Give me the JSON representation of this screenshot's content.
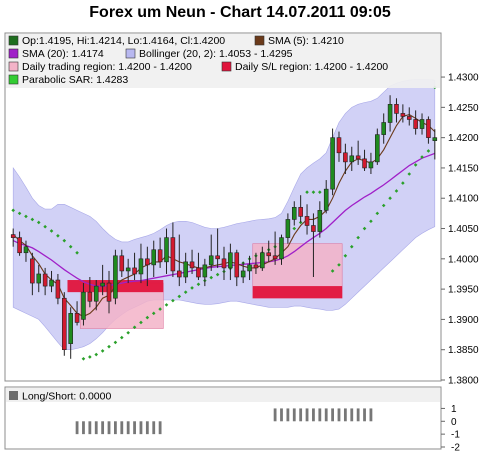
{
  "title": "Forex um Neun - Chart 14.07.2011 09:05",
  "colors": {
    "candle_up": "#1f8a1f",
    "candle_down": "#d21a2f",
    "sma5": "#6b3a1a",
    "sma20": "#a020c8",
    "bollinger_fill": "#c9c9f4",
    "trading_region_fill": "#f3b3c8",
    "sl_region_fill": "#e0143c",
    "psar": "#2aa02a",
    "longshort_bar": "#777777",
    "legend_bg": "#f0f0f0"
  },
  "legend": [
    {
      "id": "ohlc",
      "color": "#1f6e1f",
      "text": "Op:1.4195, Hi:1.4214, Lo:1.4164, Cl:1.4200"
    },
    {
      "id": "sma5",
      "color": "#6b3a1a",
      "text": "SMA (5): 1.4210"
    },
    {
      "id": "sma20",
      "color": "#a020c8",
      "text": "SMA (20): 1.4174"
    },
    {
      "id": "bollinger",
      "color": "#b8b8f0",
      "text": "Bollinger (20, 2): 1.4053 - 1.4295"
    },
    {
      "id": "trading",
      "color": "#f3b3c8",
      "text": "Daily trading region: 1.4200 - 1.4200"
    },
    {
      "id": "sl",
      "color": "#e0143c",
      "text": "Daily S/L region: 1.4200 - 1.4200"
    },
    {
      "id": "psar",
      "color": "#33cc33",
      "text": "Parabolic SAR: 1.4283"
    }
  ],
  "longshort_legend": "Long/Short: 0.0000",
  "chart_data": [
    {
      "type": "candlestick",
      "ylim": [
        1.38,
        1.431
      ],
      "y_ticks": [
        "1.4300",
        "1.4250",
        "1.4200",
        "1.4150",
        "1.4100",
        "1.4050",
        "1.4000",
        "1.3950",
        "1.3900",
        "1.3850",
        "1.3800"
      ],
      "candles": [
        {
          "o": 1.404,
          "h": 1.405,
          "l": 1.402,
          "c": 1.4035
        },
        {
          "o": 1.4035,
          "h": 1.4045,
          "l": 1.4005,
          "c": 1.401
        },
        {
          "o": 1.401,
          "h": 1.403,
          "l": 1.3995,
          "c": 1.402
        },
        {
          "o": 1.4,
          "h": 1.401,
          "l": 1.394,
          "c": 1.396
        },
        {
          "o": 1.396,
          "h": 1.399,
          "l": 1.3945,
          "c": 1.3975
        },
        {
          "o": 1.3975,
          "h": 1.3985,
          "l": 1.394,
          "c": 1.3955
        },
        {
          "o": 1.3955,
          "h": 1.398,
          "l": 1.3945,
          "c": 1.3965
        },
        {
          "o": 1.3965,
          "h": 1.3975,
          "l": 1.3925,
          "c": 1.3935
        },
        {
          "o": 1.3935,
          "h": 1.3945,
          "l": 1.384,
          "c": 1.385
        },
        {
          "o": 1.386,
          "h": 1.392,
          "l": 1.3835,
          "c": 1.391
        },
        {
          "o": 1.391,
          "h": 1.393,
          "l": 1.389,
          "c": 1.3895
        },
        {
          "o": 1.39,
          "h": 1.396,
          "l": 1.389,
          "c": 1.3945
        },
        {
          "o": 1.3945,
          "h": 1.397,
          "l": 1.392,
          "c": 1.393
        },
        {
          "o": 1.393,
          "h": 1.3965,
          "l": 1.3915,
          "c": 1.3955
        },
        {
          "o": 1.3955,
          "h": 1.399,
          "l": 1.394,
          "c": 1.396
        },
        {
          "o": 1.396,
          "h": 1.398,
          "l": 1.391,
          "c": 1.393
        },
        {
          "o": 1.3935,
          "h": 1.4015,
          "l": 1.3925,
          "c": 1.4005
        },
        {
          "o": 1.4005,
          "h": 1.4015,
          "l": 1.397,
          "c": 1.398
        },
        {
          "o": 1.398,
          "h": 1.4,
          "l": 1.396,
          "c": 1.3985
        },
        {
          "o": 1.3985,
          "h": 1.401,
          "l": 1.3965,
          "c": 1.3975
        },
        {
          "o": 1.3975,
          "h": 1.4025,
          "l": 1.396,
          "c": 1.4
        },
        {
          "o": 1.4,
          "h": 1.402,
          "l": 1.3955,
          "c": 1.399
        },
        {
          "o": 1.399,
          "h": 1.403,
          "l": 1.397,
          "c": 1.4015
        },
        {
          "o": 1.4015,
          "h": 1.4035,
          "l": 1.3985,
          "c": 1.3995
        },
        {
          "o": 1.3995,
          "h": 1.405,
          "l": 1.3975,
          "c": 1.4035
        },
        {
          "o": 1.4035,
          "h": 1.406,
          "l": 1.397,
          "c": 1.398
        },
        {
          "o": 1.398,
          "h": 1.404,
          "l": 1.3955,
          "c": 1.397
        },
        {
          "o": 1.397,
          "h": 1.401,
          "l": 1.396,
          "c": 1.3995
        },
        {
          "o": 1.3995,
          "h": 1.4015,
          "l": 1.3975,
          "c": 1.3985
        },
        {
          "o": 1.3985,
          "h": 1.401,
          "l": 1.3965,
          "c": 1.397
        },
        {
          "o": 1.397,
          "h": 1.4,
          "l": 1.3955,
          "c": 1.399
        },
        {
          "o": 1.399,
          "h": 1.404,
          "l": 1.398,
          "c": 1.4005
        },
        {
          "o": 1.4005,
          "h": 1.405,
          "l": 1.3985,
          "c": 1.4
        },
        {
          "o": 1.4,
          "h": 1.402,
          "l": 1.3965,
          "c": 1.3985
        },
        {
          "o": 1.3985,
          "h": 1.4025,
          "l": 1.3965,
          "c": 1.401
        },
        {
          "o": 1.401,
          "h": 1.4015,
          "l": 1.3955,
          "c": 1.397
        },
        {
          "o": 1.397,
          "h": 1.3995,
          "l": 1.396,
          "c": 1.398
        },
        {
          "o": 1.398,
          "h": 1.4005,
          "l": 1.3965,
          "c": 1.399
        },
        {
          "o": 1.399,
          "h": 1.401,
          "l": 1.3975,
          "c": 1.3985
        },
        {
          "o": 1.3985,
          "h": 1.402,
          "l": 1.398,
          "c": 1.401
        },
        {
          "o": 1.401,
          "h": 1.403,
          "l": 1.3995,
          "c": 1.4005
        },
        {
          "o": 1.4005,
          "h": 1.4045,
          "l": 1.399,
          "c": 1.4
        },
        {
          "o": 1.4,
          "h": 1.404,
          "l": 1.399,
          "c": 1.4035
        },
        {
          "o": 1.4035,
          "h": 1.4075,
          "l": 1.4025,
          "c": 1.4065
        },
        {
          "o": 1.4065,
          "h": 1.4095,
          "l": 1.4055,
          "c": 1.4085
        },
        {
          "o": 1.4085,
          "h": 1.4105,
          "l": 1.406,
          "c": 1.407
        },
        {
          "o": 1.407,
          "h": 1.409,
          "l": 1.404,
          "c": 1.4055
        },
        {
          "o": 1.4055,
          "h": 1.4075,
          "l": 1.397,
          "c": 1.4045
        },
        {
          "o": 1.4045,
          "h": 1.4095,
          "l": 1.4035,
          "c": 1.408
        },
        {
          "o": 1.408,
          "h": 1.413,
          "l": 1.4075,
          "c": 1.4115
        },
        {
          "o": 1.4115,
          "h": 1.4215,
          "l": 1.4105,
          "c": 1.42
        },
        {
          "o": 1.42,
          "h": 1.421,
          "l": 1.416,
          "c": 1.4175
        },
        {
          "o": 1.4175,
          "h": 1.419,
          "l": 1.414,
          "c": 1.416
        },
        {
          "o": 1.416,
          "h": 1.4185,
          "l": 1.4145,
          "c": 1.417
        },
        {
          "o": 1.417,
          "h": 1.4195,
          "l": 1.4155,
          "c": 1.4165
        },
        {
          "o": 1.4165,
          "h": 1.418,
          "l": 1.4145,
          "c": 1.415
        },
        {
          "o": 1.415,
          "h": 1.4175,
          "l": 1.414,
          "c": 1.416
        },
        {
          "o": 1.416,
          "h": 1.4215,
          "l": 1.4155,
          "c": 1.4205
        },
        {
          "o": 1.4205,
          "h": 1.424,
          "l": 1.419,
          "c": 1.4225
        },
        {
          "o": 1.4225,
          "h": 1.427,
          "l": 1.421,
          "c": 1.4255
        },
        {
          "o": 1.4255,
          "h": 1.4265,
          "l": 1.4225,
          "c": 1.424
        },
        {
          "o": 1.424,
          "h": 1.4255,
          "l": 1.4225,
          "c": 1.4235
        },
        {
          "o": 1.4235,
          "h": 1.425,
          "l": 1.422,
          "c": 1.423
        },
        {
          "o": 1.423,
          "h": 1.4245,
          "l": 1.4205,
          "c": 1.4215
        },
        {
          "o": 1.4215,
          "h": 1.424,
          "l": 1.4205,
          "c": 1.423
        },
        {
          "o": 1.423,
          "h": 1.4235,
          "l": 1.419,
          "c": 1.42
        },
        {
          "o": 1.4195,
          "h": 1.4214,
          "l": 1.4164,
          "c": 1.42
        }
      ],
      "sma5": [
        1.404,
        1.403,
        1.4022,
        1.4005,
        1.3992,
        1.3975,
        1.3965,
        1.3958,
        1.3935,
        1.3923,
        1.391,
        1.3905,
        1.391,
        1.392,
        1.3935,
        1.394,
        1.3955,
        1.3965,
        1.397,
        1.3975,
        1.3985,
        1.399,
        1.3995,
        1.3995,
        1.4005,
        1.4,
        1.3995,
        1.3992,
        1.3988,
        1.3985,
        1.3985,
        1.3988,
        1.399,
        1.3992,
        1.3995,
        1.3992,
        1.3988,
        1.3985,
        1.3985,
        1.399,
        1.3995,
        1.4,
        1.401,
        1.402,
        1.404,
        1.4055,
        1.4065,
        1.4065,
        1.407,
        1.408,
        1.41,
        1.4125,
        1.4145,
        1.416,
        1.4165,
        1.4162,
        1.4158,
        1.4165,
        1.418,
        1.42,
        1.422,
        1.4235,
        1.4238,
        1.4232,
        1.4225,
        1.422,
        1.421
      ],
      "sma20": [
        1.403,
        1.4025,
        1.4022,
        1.4018,
        1.4012,
        1.4005,
        1.3998,
        1.399,
        1.3982,
        1.3975,
        1.3968,
        1.3962,
        1.3958,
        1.3955,
        1.3955,
        1.3956,
        1.3958,
        1.396,
        1.3962,
        1.3963,
        1.3964,
        1.3966,
        1.3968,
        1.397,
        1.3972,
        1.3974,
        1.3976,
        1.3978,
        1.398,
        1.3982,
        1.3984,
        1.3986,
        1.3987,
        1.3988,
        1.3989,
        1.399,
        1.3991,
        1.3992,
        1.3993,
        1.3994,
        1.3995,
        1.3997,
        1.4,
        1.4005,
        1.4012,
        1.402,
        1.4028,
        1.4035,
        1.4042,
        1.405,
        1.406,
        1.407,
        1.408,
        1.4088,
        1.4095,
        1.4102,
        1.4108,
        1.4115,
        1.4122,
        1.413,
        1.4138,
        1.4146,
        1.4154,
        1.416,
        1.4166,
        1.417,
        1.4174
      ],
      "bb_upper": [
        1.415,
        1.4135,
        1.4118,
        1.41,
        1.4088,
        1.4082,
        1.4082,
        1.409,
        1.409,
        1.4085,
        1.408,
        1.4075,
        1.407,
        1.4062,
        1.405,
        1.404,
        1.4032,
        1.4028,
        1.4028,
        1.4032,
        1.4035,
        1.4038,
        1.4042,
        1.4048,
        1.4055,
        1.406,
        1.4062,
        1.4062,
        1.406,
        1.4056,
        1.4052,
        1.405,
        1.405,
        1.4052,
        1.4055,
        1.4058,
        1.406,
        1.4062,
        1.4064,
        1.4065,
        1.4066,
        1.4068,
        1.4075,
        1.4095,
        1.4118,
        1.414,
        1.415,
        1.4158,
        1.4165,
        1.4175,
        1.42,
        1.4225,
        1.424,
        1.425,
        1.4255,
        1.4258,
        1.426,
        1.4265,
        1.4275,
        1.4285,
        1.429,
        1.4293,
        1.4295,
        1.4296,
        1.4296,
        1.4296,
        1.4295
      ],
      "bb_lower": [
        1.392,
        1.3915,
        1.391,
        1.3905,
        1.39,
        1.3888,
        1.3875,
        1.3862,
        1.385,
        1.385,
        1.3852,
        1.3855,
        1.386,
        1.3868,
        1.3878,
        1.389,
        1.39,
        1.3908,
        1.3915,
        1.392,
        1.3925,
        1.393,
        1.3932,
        1.3932,
        1.3932,
        1.3932,
        1.3932,
        1.393,
        1.3928,
        1.3926,
        1.3925,
        1.3925,
        1.3926,
        1.3928,
        1.393,
        1.393,
        1.3928,
        1.3926,
        1.3924,
        1.3922,
        1.392,
        1.392,
        1.392,
        1.392,
        1.3922,
        1.3922,
        1.392,
        1.3918,
        1.3917,
        1.3915,
        1.3915,
        1.3917,
        1.3925,
        1.3935,
        1.3945,
        1.3955,
        1.3965,
        1.3975,
        1.3985,
        1.3995,
        1.4005,
        1.4015,
        1.4025,
        1.4035,
        1.4042,
        1.4048,
        1.4053
      ],
      "psar": [
        1.408,
        1.4075,
        1.407,
        1.4065,
        1.406,
        1.4053,
        1.4046,
        1.4038,
        1.403,
        1.402,
        1.401,
        1.3835,
        1.3838,
        1.3842,
        1.3848,
        1.3855,
        1.3862,
        1.387,
        1.3878,
        1.3887,
        1.3895,
        1.3903,
        1.391,
        1.3917,
        1.3924,
        1.3931,
        1.3938,
        1.3945,
        1.3952,
        1.3958,
        1.3964,
        1.3969,
        1.3974,
        1.3979,
        1.3984,
        1.3988,
        1.3993,
        1.4,
        1.4005,
        1.401,
        1.4015,
        1.402,
        1.403,
        1.404,
        1.405,
        1.406,
        1.411,
        1.411,
        1.411,
        1.411,
        1.398,
        1.399,
        1.4005,
        1.402,
        1.4035,
        1.405,
        1.4062,
        1.4075,
        1.4088,
        1.41,
        1.4112,
        1.4125,
        1.414,
        1.4155,
        1.4168,
        1.4178,
        1.4283
      ],
      "trading_regions": [
        {
          "from": 11,
          "to": 23,
          "low": 1.3885,
          "high": 1.396
        },
        {
          "from": 38,
          "to": 51,
          "low": 1.3935,
          "high": 1.4025
        }
      ],
      "sl_regions": [
        {
          "from": 9,
          "to": 23,
          "low": 1.3945,
          "high": 1.3965
        },
        {
          "from": 38,
          "to": 51,
          "low": 1.3935,
          "high": 1.3955
        }
      ]
    },
    {
      "type": "bar",
      "name": "Long/Short",
      "ylim": [
        -2,
        1.5
      ],
      "y_ticks": [
        "1",
        "0",
        "-1",
        "-2"
      ],
      "ranges": [
        {
          "from": 10,
          "to": 23,
          "value": -1
        },
        {
          "from": 41,
          "to": 56,
          "value": 1
        }
      ]
    }
  ]
}
